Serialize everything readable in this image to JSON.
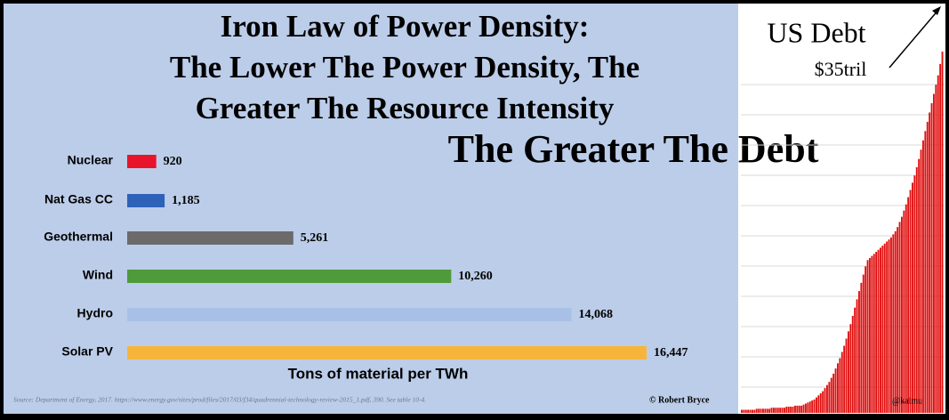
{
  "chart_data": [
    {
      "type": "hbar",
      "title": [
        "Iron Law of Power Density:",
        "The Lower The Power Density, The",
        "Greater The Resource Intensity"
      ],
      "annotation": "The Greater The Debt",
      "categories": [
        "Nuclear",
        "Nat Gas CC",
        "Geothermal",
        "Wind",
        "Hydro",
        "Solar PV"
      ],
      "values": [
        920,
        1185,
        5261,
        10260,
        14068,
        16447
      ],
      "value_labels": [
        "920",
        "1,185",
        "5,261",
        "10,260",
        "14,068",
        "16,447"
      ],
      "colors": [
        "#e8142c",
        "#2e62b8",
        "#6b6b6b",
        "#4f9a3a",
        "#a9c0e6",
        "#f6b53a"
      ],
      "xlabel": "Tons of material per TWh",
      "source": "Source: Department of Energy, 2017. https://www.energy.gov/sites/prod/files/2017/03/f34/quadrennial-technology-review-2015_1.pdf, 390. See table 10-4.",
      "credit": "© Robert Bryce"
    },
    {
      "type": "column",
      "title": "US Debt",
      "annotation": "$35tril",
      "credit": "@kaimu",
      "color": "#e01010",
      "values": [
        0.3,
        0.3,
        0.3,
        0.3,
        0.3,
        0.3,
        0.3,
        0.4,
        0.4,
        0.4,
        0.4,
        0.4,
        0.4,
        0.4,
        0.5,
        0.5,
        0.5,
        0.5,
        0.5,
        0.5,
        0.5,
        0.6,
        0.6,
        0.6,
        0.6,
        0.7,
        0.7,
        0.7,
        0.7,
        0.8,
        0.9,
        1.0,
        1.1,
        1.2,
        1.3,
        1.5,
        1.7,
        1.9,
        2.1,
        2.4,
        2.7,
        3.0,
        3.4,
        3.8,
        4.3,
        4.8,
        5.3,
        5.9,
        6.5,
        7.2,
        7.9,
        8.6,
        9.4,
        10.2,
        11.0,
        11.8,
        12.6,
        13.4,
        14.2,
        14.8,
        15.0,
        15.2,
        15.4,
        15.6,
        15.8,
        16.0,
        16.2,
        16.4,
        16.6,
        16.8,
        17.0,
        17.3,
        17.6,
        18.0,
        18.5,
        19.0,
        19.6,
        20.2,
        20.9,
        21.6,
        22.3,
        23.0,
        23.8,
        24.6,
        25.5,
        26.4,
        27.3,
        28.2,
        29.1,
        30.0,
        30.9,
        31.8,
        32.7,
        33.8,
        35.0
      ]
    }
  ]
}
